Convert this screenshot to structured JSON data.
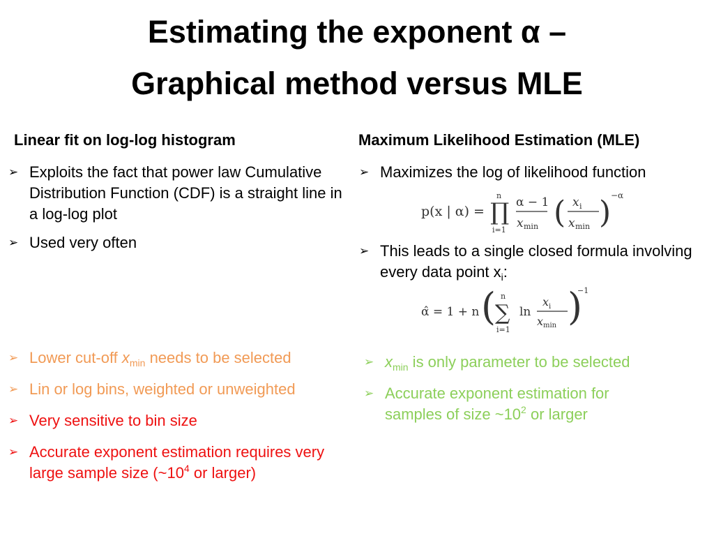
{
  "title": {
    "line1": "Estimating the exponent α  –",
    "line2": "Graphical method versus MLE"
  },
  "left": {
    "heading": "Linear fit on log-log histogram",
    "bullets": [
      {
        "text": "Exploits the fact that power law Cumulative Distribution Function (CDF) is a straight line in a log-log plot"
      },
      {
        "text": "Used very often"
      }
    ],
    "cons": [
      {
        "pre": "Lower cut-off ",
        "var": "x",
        "sub": "min",
        "post": " needs to be selected"
      },
      {
        "text": "Lin or log bins, weighted or unweighted"
      },
      {
        "text": "Very sensitive to bin size"
      },
      {
        "pre": "Accurate exponent estimation requires very large sample size  (~10",
        "sup": "4",
        "post": " or larger)"
      }
    ]
  },
  "right": {
    "heading": "Maximum Likelihood Estimation (MLE)",
    "bullets": [
      {
        "text": "Maximizes the log of likelihood function"
      },
      {
        "pre": "This leads to a single closed formula involving every data point x",
        "sub": "i",
        "post": ":"
      }
    ],
    "pros": [
      {
        "var": "x",
        "sub": "min",
        "post": " is only parameter  to be selected"
      },
      {
        "pre": "Accurate exponent estimation for samples of size ~10",
        "sup": "2",
        "post": " or larger"
      }
    ],
    "equation1": {
      "lhs": "p(x | α) =",
      "prod_top": "n",
      "prod_symbol": "∏",
      "prod_bottom": "i=1",
      "frac1_num": "α − 1",
      "frac1_den": "x",
      "frac2_num": "x",
      "frac2_den": "x",
      "sub_i": "i",
      "sub_min": "min",
      "exponent": "−α"
    },
    "equation2": {
      "lhs": "α̂ = 1 + n",
      "sum_top": "n",
      "sum_symbol": "∑",
      "sum_bottom": "i=1",
      "ln": "ln",
      "frac_num": "x",
      "frac_den": "x",
      "sub_i": "i",
      "sub_min": "min",
      "exponent": "−1"
    }
  },
  "arrow_glyph": "➢",
  "colors": {
    "orange": "#f19a55",
    "red": "#ee1111",
    "green": "#8ccf5a"
  }
}
